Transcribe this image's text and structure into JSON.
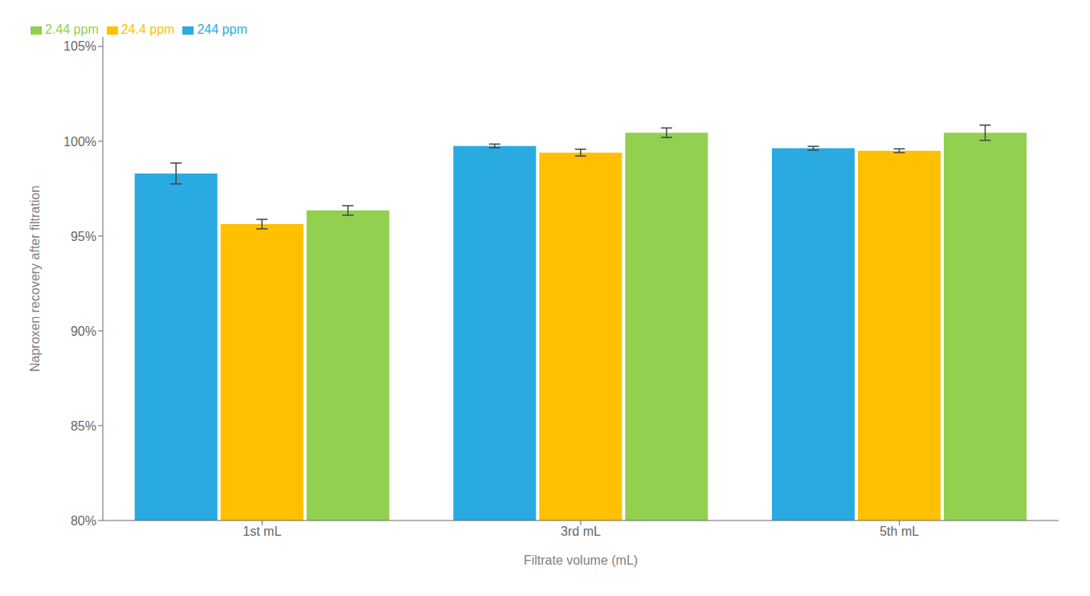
{
  "chart_data": {
    "type": "bar",
    "categories": [
      "1st mL",
      "3rd mL",
      "5th mL"
    ],
    "series": [
      {
        "name": "244 ppm",
        "color": "#29ABE2",
        "values": [
          0.983,
          0.9975,
          0.9963
        ],
        "errors": [
          0.0055,
          0.001,
          0.001
        ]
      },
      {
        "name": "24.4 ppm",
        "color": "#FFC000",
        "values": [
          0.9563,
          0.994,
          0.995
        ],
        "errors": [
          0.0025,
          0.0018,
          0.001
        ]
      },
      {
        "name": "2.44 ppm",
        "color": "#92D050",
        "values": [
          0.9635,
          1.0045,
          1.0045
        ],
        "errors": [
          0.0025,
          0.0025,
          0.004
        ]
      }
    ],
    "xlabel": "Filtrate volume (mL)",
    "ylabel": "Naproxen recovery after filtration",
    "ylim": [
      0.8,
      1.055
    ],
    "yticks": [
      {
        "value": 0.8,
        "label": "80%"
      },
      {
        "value": 0.85,
        "label": "85%"
      },
      {
        "value": 0.9,
        "label": "90%"
      },
      {
        "value": 0.95,
        "label": "95%"
      },
      {
        "value": 1.0,
        "label": "100%"
      },
      {
        "value": 1.05,
        "label": "105%"
      }
    ],
    "grid": false,
    "legend": "upper left"
  }
}
